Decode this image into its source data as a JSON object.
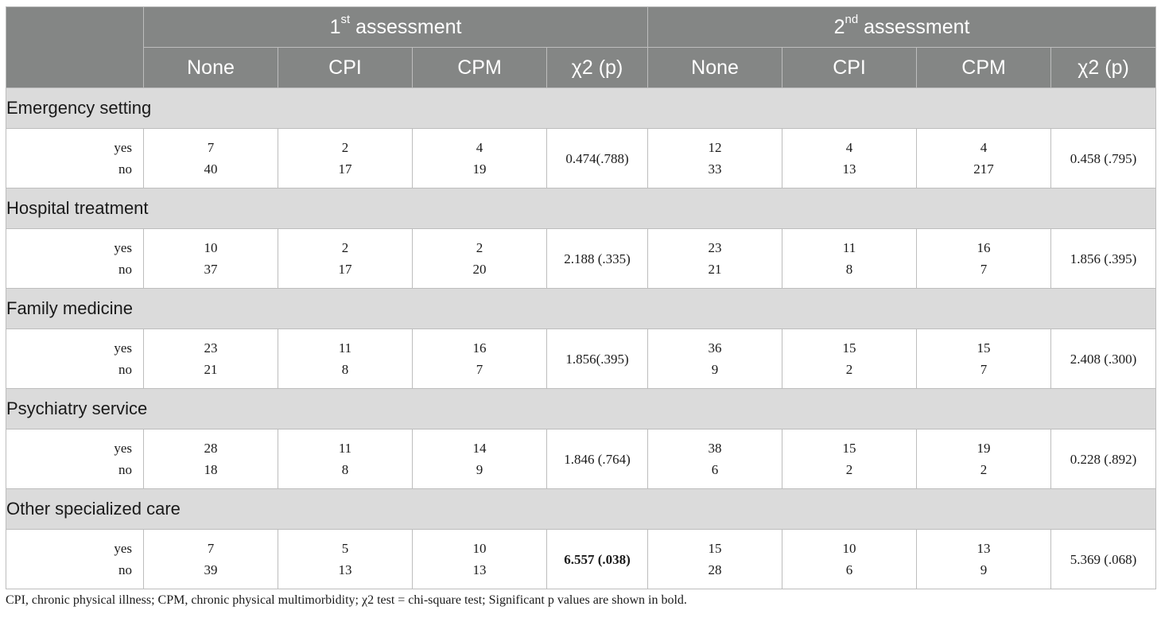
{
  "header": {
    "group1": {
      "base": "1",
      "sup": "st",
      "rest": " assessment"
    },
    "group2": {
      "base": "2",
      "sup": "nd",
      "rest": " assessment"
    },
    "columns": [
      "None",
      "CPI",
      "CPM",
      "χ2 (p)",
      "None",
      "CPI",
      "CPM",
      "χ2 (p)"
    ]
  },
  "row_labels": {
    "yes": "yes",
    "no": "no"
  },
  "sections": [
    {
      "title": "Emergency setting",
      "a1": {
        "none": [
          "7",
          "40"
        ],
        "cpi": [
          "2",
          "17"
        ],
        "cpm": [
          "4",
          "19"
        ],
        "chi": "0.474(.788)",
        "chi_bold": false
      },
      "a2": {
        "none": [
          "12",
          "33"
        ],
        "cpi": [
          "4",
          "13"
        ],
        "cpm": [
          "4",
          "217"
        ],
        "chi": "0.458 (.795)",
        "chi_bold": false
      }
    },
    {
      "title": "Hospital treatment",
      "a1": {
        "none": [
          "10",
          "37"
        ],
        "cpi": [
          "2",
          "17"
        ],
        "cpm": [
          "2",
          "20"
        ],
        "chi": "2.188 (.335)",
        "chi_bold": false
      },
      "a2": {
        "none": [
          "23",
          "21"
        ],
        "cpi": [
          "11",
          "8"
        ],
        "cpm": [
          "16",
          "7"
        ],
        "chi": "1.856 (.395)",
        "chi_bold": false
      }
    },
    {
      "title": "Family medicine",
      "a1": {
        "none": [
          "23",
          "21"
        ],
        "cpi": [
          "11",
          "8"
        ],
        "cpm": [
          "16",
          "7"
        ],
        "chi": "1.856(.395)",
        "chi_bold": false
      },
      "a2": {
        "none": [
          "36",
          "9"
        ],
        "cpi": [
          "15",
          "2"
        ],
        "cpm": [
          "15",
          "7"
        ],
        "chi": "2.408 (.300)",
        "chi_bold": false
      }
    },
    {
      "title": "Psychiatry service",
      "a1": {
        "none": [
          "28",
          "18"
        ],
        "cpi": [
          "11",
          "8"
        ],
        "cpm": [
          "14",
          "9"
        ],
        "chi": "1.846 (.764)",
        "chi_bold": false
      },
      "a2": {
        "none": [
          "38",
          "6"
        ],
        "cpi": [
          "15",
          "2"
        ],
        "cpm": [
          "19",
          "2"
        ],
        "chi": "0.228 (.892)",
        "chi_bold": false
      }
    },
    {
      "title": "Other specialized care",
      "a1": {
        "none": [
          "7",
          "39"
        ],
        "cpi": [
          "5",
          "13"
        ],
        "cpm": [
          "10",
          "13"
        ],
        "chi": "6.557 (.038)",
        "chi_bold": true
      },
      "a2": {
        "none": [
          "15",
          "28"
        ],
        "cpi": [
          "10",
          "6"
        ],
        "cpm": [
          "13",
          "9"
        ],
        "chi": "5.369 (.068)",
        "chi_bold": false
      }
    }
  ],
  "footnote": "CPI, chronic physical illness; CPM, chronic physical multimorbidity; χ2 test = chi-square test; Significant p values are shown in bold.",
  "colors": {
    "header_bg": "#848685",
    "section_bg": "#dbdbdb",
    "border": "#bdbdbd"
  }
}
